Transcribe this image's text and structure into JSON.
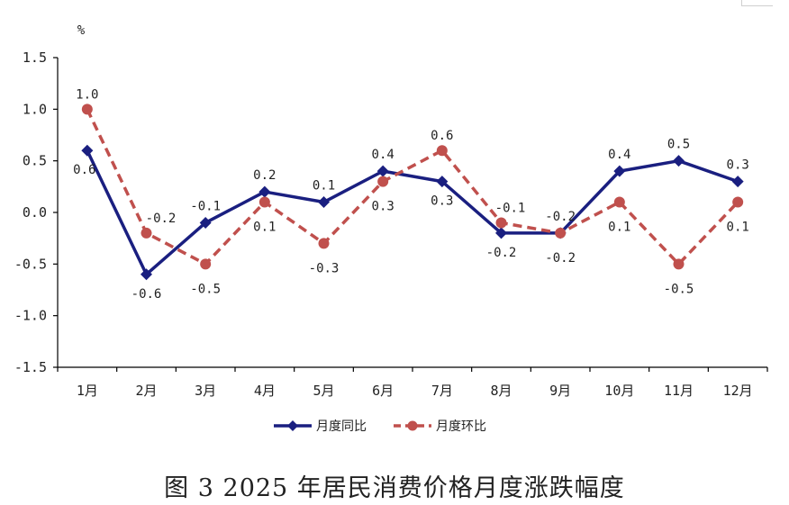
{
  "chart_data": {
    "type": "line",
    "unit_label": "%",
    "categories": [
      "1月",
      "2月",
      "3月",
      "4月",
      "5月",
      "6月",
      "7月",
      "8月",
      "9月",
      "10月",
      "11月",
      "12月"
    ],
    "ylim": [
      -1.5,
      1.5
    ],
    "yticks": [
      "1.5",
      "1.0",
      "0.5",
      "0.0",
      "-0.5",
      "-1.0",
      "-1.5"
    ],
    "ytick_values": [
      1.5,
      1.0,
      0.5,
      0.0,
      -0.5,
      -1.0,
      -1.5
    ],
    "series": [
      {
        "name": "月度同比",
        "color": "#1a1f80",
        "style": "solid",
        "marker": "diamond",
        "values": [
          0.6,
          -0.6,
          -0.1,
          0.2,
          0.1,
          0.4,
          0.3,
          -0.2,
          -0.2,
          0.4,
          0.5,
          0.3
        ],
        "labels": [
          "0.6",
          "-0.6",
          "-0.1",
          "0.2",
          "0.1",
          "0.4",
          "0.3",
          "-0.2",
          "-0.2",
          "0.4",
          "0.5",
          "0.3"
        ]
      },
      {
        "name": "月度环比",
        "color": "#c0504d",
        "style": "dashed",
        "marker": "circle",
        "values": [
          1.0,
          -0.2,
          -0.5,
          0.1,
          -0.3,
          0.3,
          0.6,
          -0.1,
          -0.2,
          0.1,
          -0.5,
          0.1
        ],
        "labels": [
          "1.0",
          "-0.2",
          "-0.5",
          "0.1",
          "-0.3",
          "0.3",
          "0.6",
          "-0.1",
          "-0.2",
          "0.1",
          "-0.5",
          "0.1"
        ]
      }
    ],
    "legend_position": "bottom-center",
    "grid": false
  },
  "caption": "图 3   2025 年居民消费价格月度涨跌幅度"
}
